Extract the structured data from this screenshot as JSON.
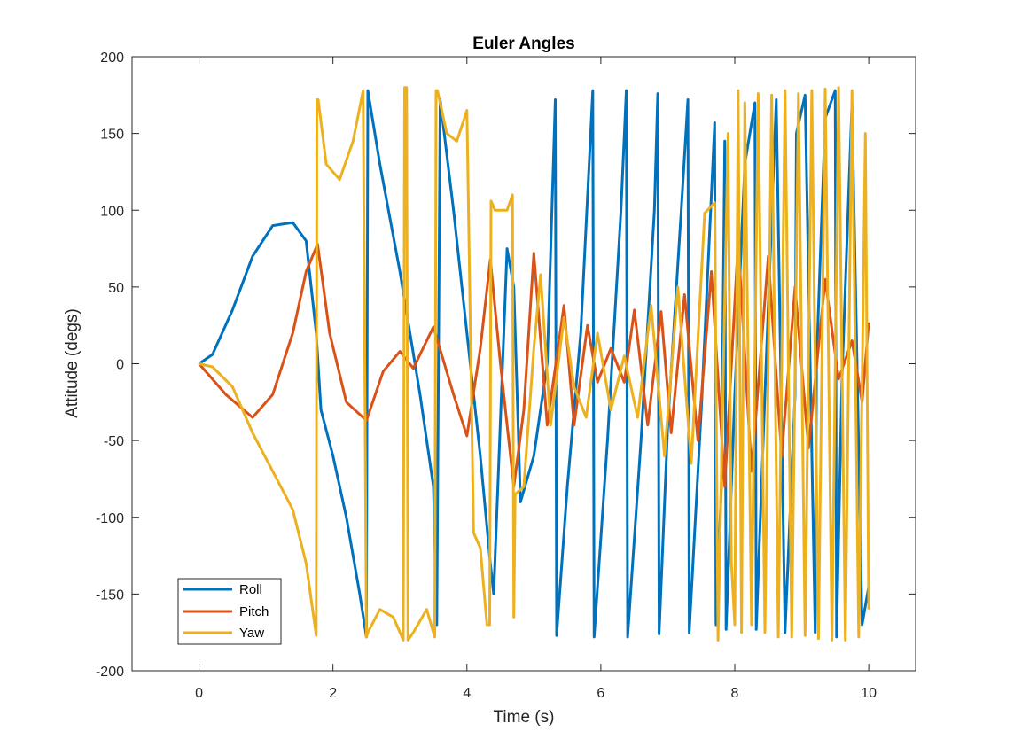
{
  "chart_data": {
    "type": "line",
    "title": "Euler Angles",
    "xlabel": "Time (s)",
    "ylabel": "Attitude (degs)",
    "xlim": [
      -1,
      10.7
    ],
    "ylim": [
      -200,
      200
    ],
    "xticks": [
      "0",
      "2",
      "4",
      "6",
      "8",
      "10"
    ],
    "yticks": [
      "-200",
      "-150",
      "-100",
      "-50",
      "0",
      "50",
      "100",
      "150",
      "200"
    ],
    "grid": false,
    "legend_position": "bottom-left",
    "colors": {
      "Roll": "#0072BD",
      "Pitch": "#D95319",
      "Yaw": "#EDB120"
    },
    "series": [
      {
        "name": "Roll",
        "x": [
          0,
          0.2,
          0.5,
          0.8,
          1.1,
          1.4,
          1.6,
          1.75,
          1.82,
          2.0,
          2.2,
          2.4,
          2.5,
          2.52,
          2.7,
          3.0,
          3.3,
          3.5,
          3.55,
          3.6,
          3.8,
          4.0,
          4.2,
          4.35,
          4.4,
          4.6,
          4.7,
          4.8,
          5.0,
          5.2,
          5.32,
          5.34,
          5.5,
          5.7,
          5.88,
          5.9,
          6.1,
          6.3,
          6.38,
          6.4,
          6.6,
          6.8,
          6.85,
          6.87,
          7.0,
          7.2,
          7.3,
          7.32,
          7.5,
          7.65,
          7.7,
          7.72,
          7.8,
          7.85,
          7.87,
          8.0,
          8.15,
          8.3,
          8.32,
          8.45,
          8.6,
          8.62,
          8.75,
          8.9,
          8.92,
          9.05,
          9.2,
          9.22,
          9.35,
          9.5,
          9.52,
          9.6,
          9.75,
          9.9,
          10.0
        ],
        "values": [
          0,
          6,
          35,
          70,
          90,
          92,
          80,
          20,
          -30,
          -60,
          -100,
          -150,
          -178,
          178,
          130,
          60,
          -20,
          -80,
          -170,
          172,
          100,
          20,
          -60,
          -130,
          -150,
          75,
          50,
          -90,
          -60,
          0,
          172,
          -177,
          -80,
          20,
          178,
          -178,
          -50,
          100,
          178,
          -178,
          -50,
          100,
          176,
          -176,
          -40,
          100,
          172,
          -175,
          -30,
          110,
          157,
          -170,
          -80,
          145,
          -173,
          -20,
          130,
          170,
          -173,
          -20,
          150,
          172,
          -175,
          -20,
          150,
          175,
          -175,
          0,
          160,
          178,
          -178,
          -10,
          170,
          -170,
          -145
        ]
      },
      {
        "name": "Pitch",
        "x": [
          0,
          0.4,
          0.8,
          1.1,
          1.4,
          1.6,
          1.77,
          1.95,
          2.2,
          2.5,
          2.75,
          3.0,
          3.2,
          3.5,
          3.8,
          4.0,
          4.2,
          4.35,
          4.5,
          4.7,
          4.85,
          5.0,
          5.2,
          5.45,
          5.6,
          5.8,
          5.95,
          6.15,
          6.35,
          6.5,
          6.7,
          6.9,
          7.05,
          7.25,
          7.45,
          7.65,
          7.85,
          8.05,
          8.25,
          8.5,
          8.7,
          8.9,
          9.1,
          9.35,
          9.55,
          9.75,
          9.9,
          10.0
        ],
        "values": [
          0,
          -20,
          -35,
          -20,
          20,
          60,
          78,
          20,
          -25,
          -37,
          -5,
          8,
          -3,
          24,
          -20,
          -47,
          10,
          68,
          0,
          -80,
          -30,
          72,
          -40,
          38,
          -40,
          25,
          -12,
          10,
          -12,
          35,
          -40,
          34,
          -45,
          45,
          -50,
          60,
          -80,
          80,
          -70,
          70,
          -60,
          50,
          -55,
          55,
          -10,
          15,
          -25,
          27
        ]
      },
      {
        "name": "Yaw",
        "x": [
          0,
          0.2,
          0.5,
          0.8,
          1.1,
          1.4,
          1.6,
          1.75,
          1.76,
          1.78,
          1.9,
          2.1,
          2.3,
          2.45,
          2.5,
          2.52,
          2.7,
          2.9,
          3.05,
          3.07,
          3.1,
          3.12,
          3.2,
          3.4,
          3.52,
          3.54,
          3.56,
          3.7,
          3.85,
          4.0,
          4.1,
          4.2,
          4.3,
          4.34,
          4.36,
          4.42,
          4.5,
          4.6,
          4.68,
          4.7,
          4.72,
          4.85,
          5.0,
          5.1,
          5.25,
          5.45,
          5.6,
          5.78,
          5.95,
          6.15,
          6.35,
          6.55,
          6.75,
          6.95,
          7.15,
          7.35,
          7.55,
          7.7,
          7.75,
          7.9,
          7.95,
          8.0,
          8.05,
          8.1,
          8.15,
          8.25,
          8.35,
          8.45,
          8.55,
          8.65,
          8.75,
          8.85,
          8.95,
          9.05,
          9.15,
          9.25,
          9.35,
          9.45,
          9.55,
          9.65,
          9.75,
          9.85,
          9.95,
          10.0
        ],
        "values": [
          0,
          -2,
          -15,
          -45,
          -70,
          -95,
          -130,
          -177,
          172,
          172,
          130,
          120,
          145,
          178,
          -178,
          -175,
          -160,
          -165,
          -180,
          180,
          180,
          -180,
          -175,
          -160,
          -178,
          178,
          178,
          150,
          145,
          165,
          -110,
          -120,
          -170,
          -170,
          106,
          100,
          100,
          100,
          110,
          -165,
          -85,
          -80,
          10,
          58,
          -40,
          30,
          -15,
          -35,
          20,
          -30,
          5,
          -35,
          38,
          -60,
          50,
          -65,
          98,
          105,
          -180,
          150,
          -130,
          -170,
          178,
          -175,
          170,
          -170,
          176,
          -175,
          175,
          -178,
          178,
          -178,
          176,
          -177,
          178,
          -179,
          179,
          -180,
          180,
          -180,
          178,
          -178,
          150,
          -160
        ]
      }
    ]
  }
}
